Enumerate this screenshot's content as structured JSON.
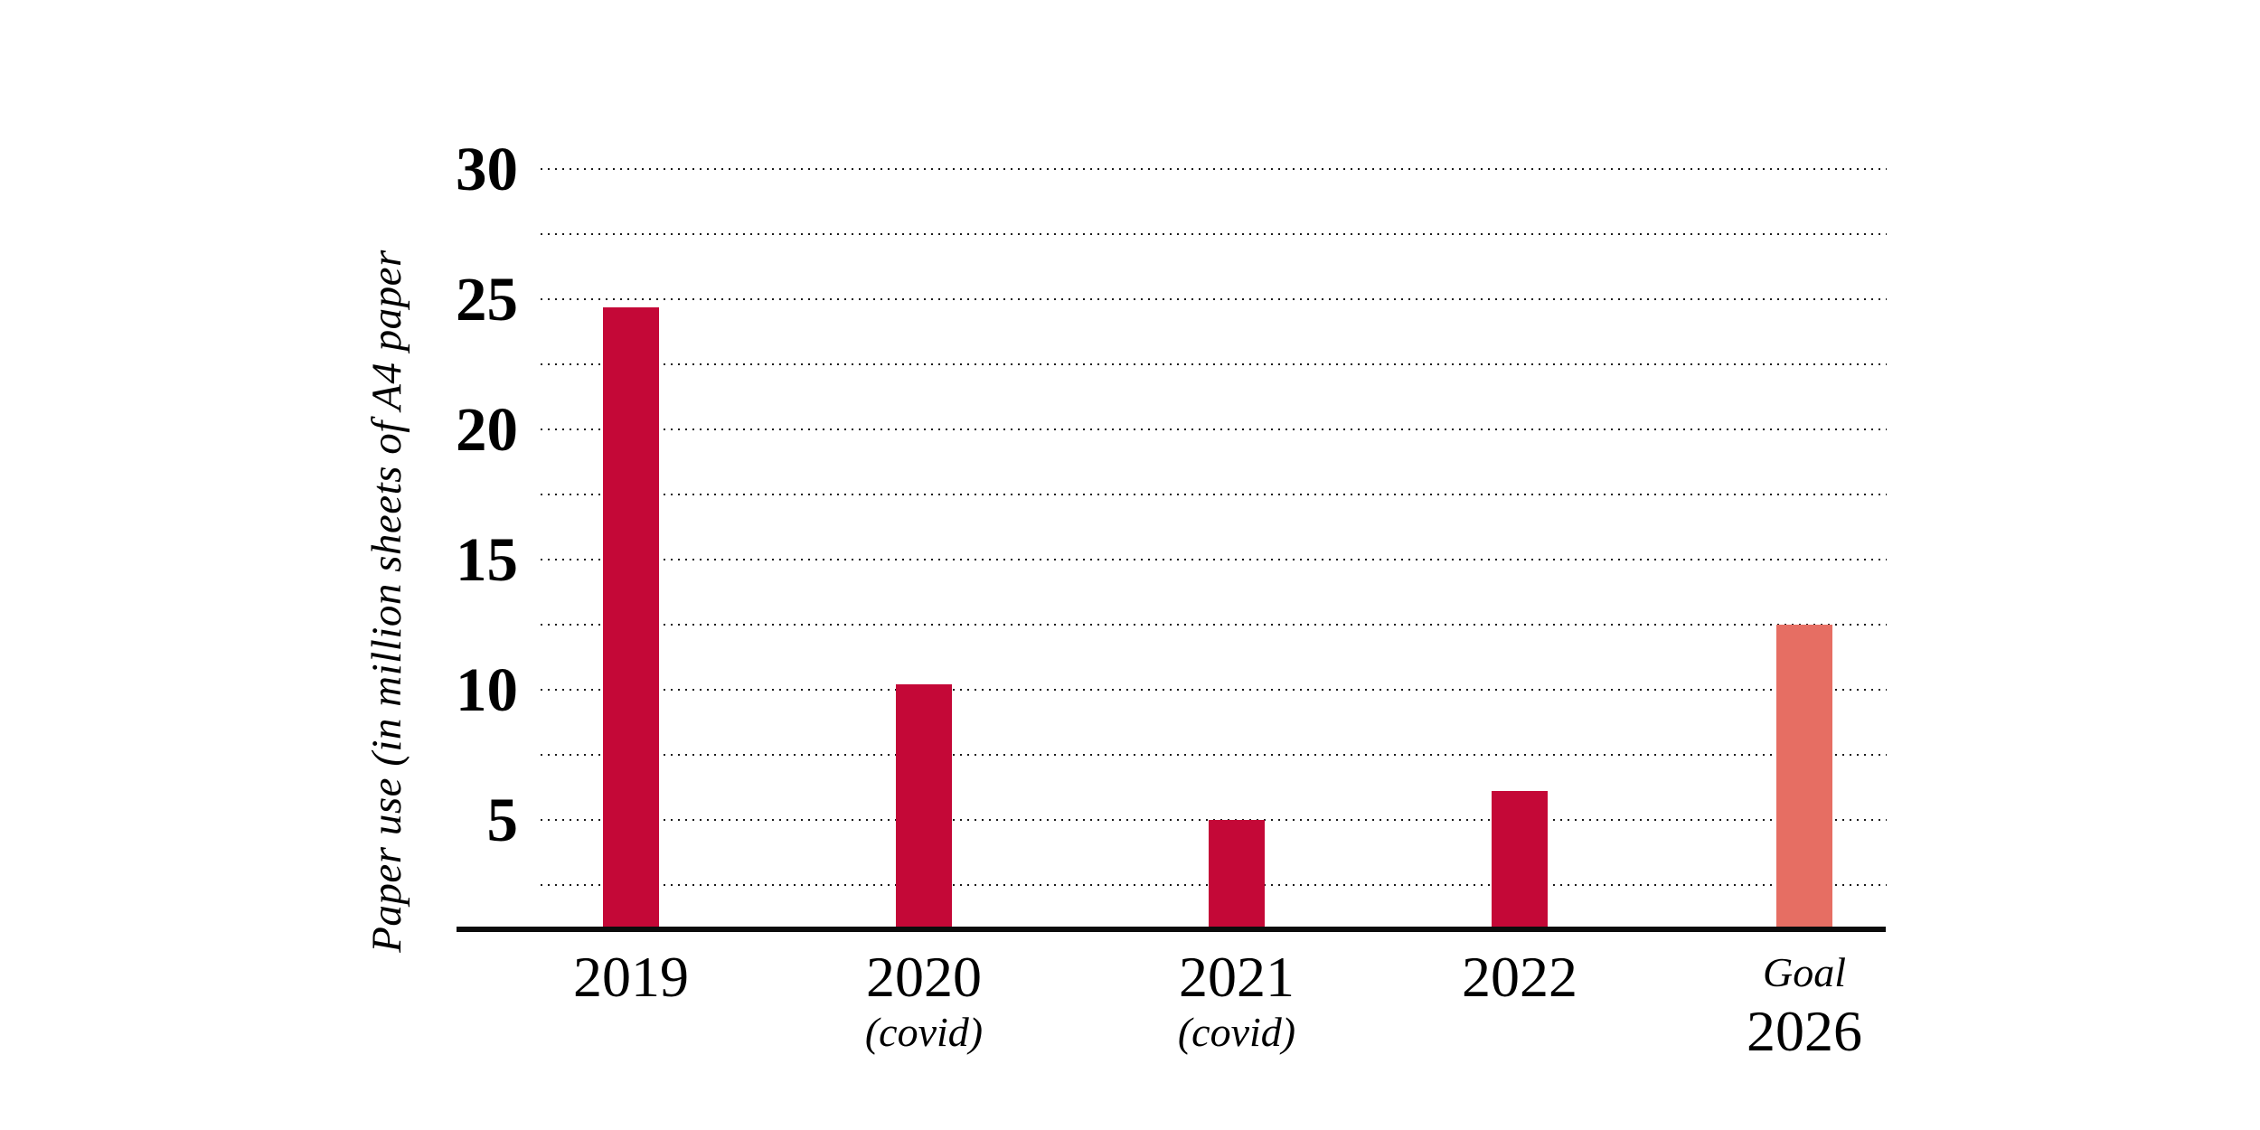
{
  "chart_data": {
    "type": "bar",
    "title": "",
    "ylabel": "Paper use (in million sheets of A4 paper",
    "xlabel": "",
    "categories": [
      "2019",
      "2020",
      "2021",
      "2022",
      "2026"
    ],
    "category_prefixes": [
      "",
      "",
      "",
      "",
      "Goal"
    ],
    "category_sublabels": [
      "",
      "(covid)",
      "(covid)",
      "",
      ""
    ],
    "series": [
      {
        "name": "Paper use (million sheets A4)",
        "values": [
          24.7,
          10.2,
          5,
          6.1,
          12.5
        ]
      }
    ],
    "bar_colors": [
      "#c40837",
      "#c40837",
      "#c40837",
      "#c40837",
      "#e66e63"
    ],
    "ylim": [
      0,
      32.5
    ],
    "yticks": [
      5,
      10,
      15,
      20,
      25,
      30
    ],
    "gridline_step": 2.5,
    "grid_style": "horizontal dotted black",
    "legend": "none",
    "colors": {
      "bar_crimson": "#c40837",
      "bar_goal_salmon": "#e66e63",
      "axis": "#0c0c0c",
      "text": "#000000",
      "background": "#ffffff"
    }
  }
}
